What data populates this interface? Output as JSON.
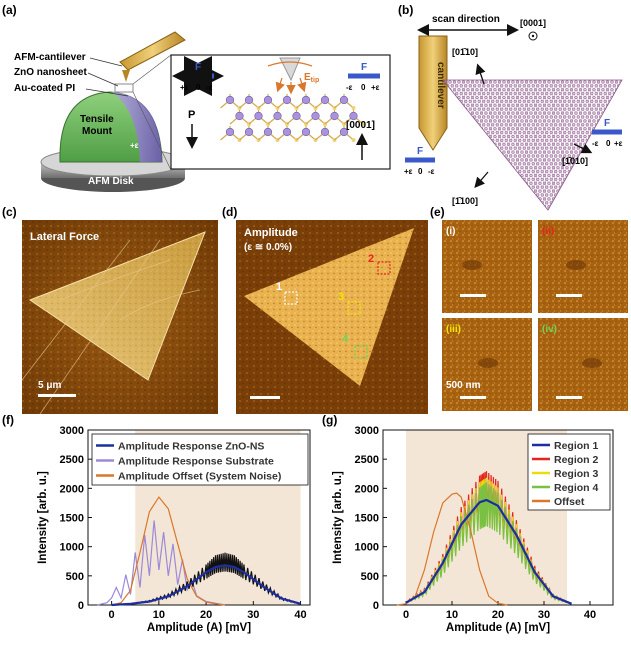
{
  "panels": {
    "a": {
      "letter": "(a)",
      "labels": {
        "cantilever": "AFM-cantilever",
        "nanosheet": "ZnO nanosheet",
        "substrate": "Au-coated PI",
        "mount": "Tensile Mount",
        "disk": "AFM Disk",
        "strain": "+ε",
        "force": "F",
        "p": "P",
        "direction": "[0001]",
        "etip": "E",
        "etip_sub": "tip",
        "zero": "0",
        "pe": "+ε",
        "me": "-ε"
      }
    },
    "b": {
      "letter": "(b)",
      "labels": {
        "scan": "scan direction",
        "cantilever": "cantilever",
        "d0001": "[0001]",
        "d0110": "[01̄10]",
        "d1010": "[1̄010]",
        "d1100": "[1̄100]",
        "force": "F",
        "zero": "0",
        "pe": "+ε",
        "me": "-ε"
      }
    },
    "c": {
      "letter": "(c)",
      "title": "Lateral Force",
      "scale": "5 μm"
    },
    "d": {
      "letter": "(d)",
      "title": "Amplitude",
      "subtitle": "(ε ≅ 0.0%)",
      "regions": [
        "1",
        "2",
        "3",
        "4"
      ],
      "region_colors": [
        "#ffffff",
        "#e3261d",
        "#f2e600",
        "#6fd35b"
      ]
    },
    "e": {
      "letter": "(e)",
      "tiles": [
        "(i)",
        "(ii)",
        "(iii)",
        "(iv)"
      ],
      "tile_colors": [
        "#ffffff",
        "#e3261d",
        "#f2e600",
        "#6fd35b"
      ],
      "scale": "500 nm"
    },
    "f": {
      "letter": "(f)"
    },
    "g": {
      "letter": "(g)"
    }
  },
  "chart_data": [
    {
      "panel": "f",
      "type": "line",
      "xlabel": "Amplitude (A) [mV]",
      "ylabel": "Intensity [arb. u.]",
      "xlim": [
        -5,
        42
      ],
      "ylim": [
        0,
        3000
      ],
      "xticks": [
        0,
        10,
        20,
        30,
        40
      ],
      "yticks": [
        0,
        500,
        1000,
        1500,
        2000,
        2500,
        3000
      ],
      "shaded_range": [
        5,
        40
      ],
      "series": [
        {
          "name": "Amplitude Response ZnO-NS",
          "color": "#1c2ea0",
          "style": "fit",
          "x": [
            0,
            4,
            8,
            12,
            16,
            20,
            22,
            24,
            26,
            28,
            32,
            36,
            40
          ],
          "y": [
            0,
            20,
            60,
            150,
            320,
            560,
            650,
            680,
            650,
            560,
            320,
            110,
            20
          ]
        },
        {
          "name": "Amplitude Response Substrate",
          "color": "#9c8ad8",
          "style": "line",
          "x": [
            -3,
            -1,
            0,
            1,
            2,
            3,
            4,
            5,
            6,
            7,
            8,
            9,
            10,
            11,
            12,
            13,
            14,
            15,
            16,
            17,
            18,
            20,
            24
          ],
          "y": [
            0,
            40,
            120,
            300,
            120,
            520,
            180,
            900,
            300,
            1200,
            500,
            1450,
            600,
            1250,
            500,
            1050,
            350,
            780,
            260,
            420,
            160,
            60,
            0
          ]
        },
        {
          "name": "Amplitude Offset (System Noise)",
          "color": "#d9772a",
          "style": "line",
          "x": [
            0,
            2,
            4,
            6,
            8,
            10,
            12,
            14,
            16,
            18,
            20,
            22,
            24
          ],
          "y": [
            0,
            40,
            250,
            900,
            1600,
            1850,
            1650,
            1050,
            450,
            150,
            50,
            20,
            0
          ]
        },
        {
          "name": "",
          "color": "#111111",
          "style": "noisy",
          "x": [
            0,
            4,
            8,
            12,
            16,
            20,
            22,
            24,
            26,
            28,
            32,
            36,
            40
          ],
          "y": [
            0,
            20,
            70,
            170,
            360,
            620,
            760,
            800,
            760,
            620,
            360,
            120,
            20
          ]
        }
      ]
    },
    {
      "panel": "g",
      "type": "line",
      "xlabel": "Amplitude (A) [mV]",
      "ylabel": "Intensity [arb. u.]",
      "xlim": [
        -5,
        45
      ],
      "ylim": [
        0,
        3000
      ],
      "xticks": [
        0,
        10,
        20,
        30,
        40
      ],
      "yticks": [
        0,
        500,
        1000,
        1500,
        2000,
        2500,
        3000
      ],
      "shaded_range": [
        0,
        35
      ],
      "series": [
        {
          "name": "Region 1",
          "color": "#1c2ea0",
          "style": "fit",
          "x": [
            0,
            4,
            8,
            12,
            16,
            17.5,
            20,
            24,
            28,
            32,
            36
          ],
          "y": [
            40,
            220,
            720,
            1380,
            1760,
            1800,
            1700,
            1200,
            560,
            150,
            20
          ]
        },
        {
          "name": "Region 2",
          "color": "#e3261d",
          "style": "noisy",
          "x": [
            0,
            4,
            8,
            12,
            16,
            17.5,
            20,
            24,
            28,
            32,
            36
          ],
          "y": [
            50,
            250,
            780,
            1500,
            1980,
            2050,
            1900,
            1300,
            600,
            160,
            20
          ]
        },
        {
          "name": "Region 3",
          "color": "#e8dc12",
          "style": "noisy",
          "x": [
            0,
            4,
            8,
            12,
            16,
            17.5,
            20,
            24,
            28,
            32,
            36
          ],
          "y": [
            40,
            230,
            740,
            1420,
            1880,
            1950,
            1800,
            1240,
            560,
            150,
            20
          ]
        },
        {
          "name": "Region 4",
          "color": "#79c043",
          "style": "noisy",
          "x": [
            0,
            4,
            8,
            12,
            16,
            17.5,
            20,
            24,
            28,
            32,
            36
          ],
          "y": [
            40,
            220,
            700,
            1360,
            1800,
            1880,
            1720,
            1180,
            540,
            140,
            20
          ]
        },
        {
          "name": "Offset",
          "color": "#d9772a",
          "style": "line",
          "x": [
            -2,
            0,
            2,
            4,
            6,
            8,
            10,
            11,
            12,
            14,
            16,
            18,
            20,
            22
          ],
          "y": [
            0,
            20,
            150,
            600,
            1250,
            1750,
            1900,
            1920,
            1850,
            1300,
            600,
            150,
            30,
            0
          ]
        }
      ]
    }
  ]
}
